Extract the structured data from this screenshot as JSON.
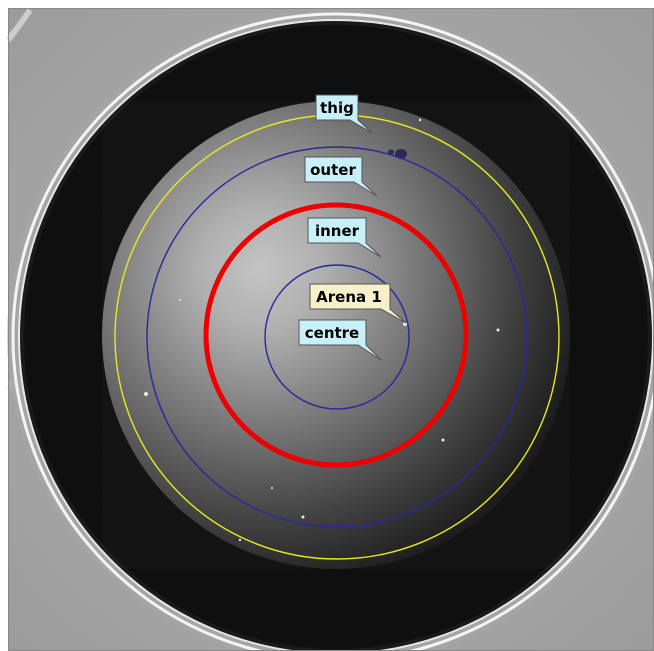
{
  "arena": {
    "name_label": "Arena 1"
  },
  "zones": [
    {
      "id": "thig",
      "label": "thig",
      "outline_color": "#e8e820"
    },
    {
      "id": "outer",
      "label": "outer",
      "outline_color": "#2828a0"
    },
    {
      "id": "inner",
      "label": "inner",
      "outline_color": "#ee0000"
    },
    {
      "id": "centre",
      "label": "centre",
      "outline_color": "#2828a0"
    }
  ],
  "colors": {
    "zone_tag_fill": "#c8f0f8",
    "arena_tag_fill": "#f8f0c8",
    "tag_text": "#000000"
  }
}
